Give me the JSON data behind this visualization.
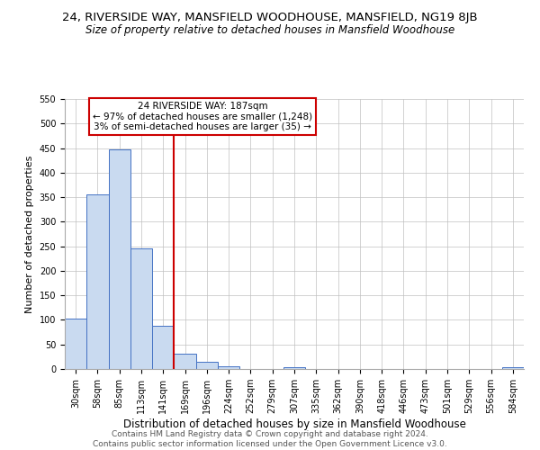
{
  "title": "24, RIVERSIDE WAY, MANSFIELD WOODHOUSE, MANSFIELD, NG19 8JB",
  "subtitle": "Size of property relative to detached houses in Mansfield Woodhouse",
  "xlabel": "Distribution of detached houses by size in Mansfield Woodhouse",
  "ylabel": "Number of detached properties",
  "bin_labels": [
    "30sqm",
    "58sqm",
    "85sqm",
    "113sqm",
    "141sqm",
    "169sqm",
    "196sqm",
    "224sqm",
    "252sqm",
    "279sqm",
    "307sqm",
    "335sqm",
    "362sqm",
    "390sqm",
    "418sqm",
    "446sqm",
    "473sqm",
    "501sqm",
    "529sqm",
    "556sqm",
    "584sqm"
  ],
  "bar_values": [
    103,
    355,
    447,
    245,
    88,
    31,
    15,
    5,
    0,
    0,
    3,
    0,
    0,
    0,
    0,
    0,
    0,
    0,
    0,
    0,
    3
  ],
  "bar_color": "#c9daf0",
  "bar_edge_color": "#4472c4",
  "vline_bin_index": 5,
  "vline_color": "#cc0000",
  "ylim": [
    0,
    550
  ],
  "yticks": [
    0,
    50,
    100,
    150,
    200,
    250,
    300,
    350,
    400,
    450,
    500,
    550
  ],
  "annotation_title": "24 RIVERSIDE WAY: 187sqm",
  "annotation_line1": "← 97% of detached houses are smaller (1,248)",
  "annotation_line2": "3% of semi-detached houses are larger (35) →",
  "annotation_box_color": "#ffffff",
  "annotation_box_edge": "#cc0000",
  "background_color": "#ffffff",
  "grid_color": "#c0c0c0",
  "footer_line1": "Contains HM Land Registry data © Crown copyright and database right 2024.",
  "footer_line2": "Contains public sector information licensed under the Open Government Licence v3.0.",
  "title_fontsize": 9.5,
  "subtitle_fontsize": 8.5,
  "xlabel_fontsize": 8.5,
  "ylabel_fontsize": 8,
  "tick_fontsize": 7,
  "annotation_fontsize": 7.5,
  "footer_fontsize": 6.5
}
